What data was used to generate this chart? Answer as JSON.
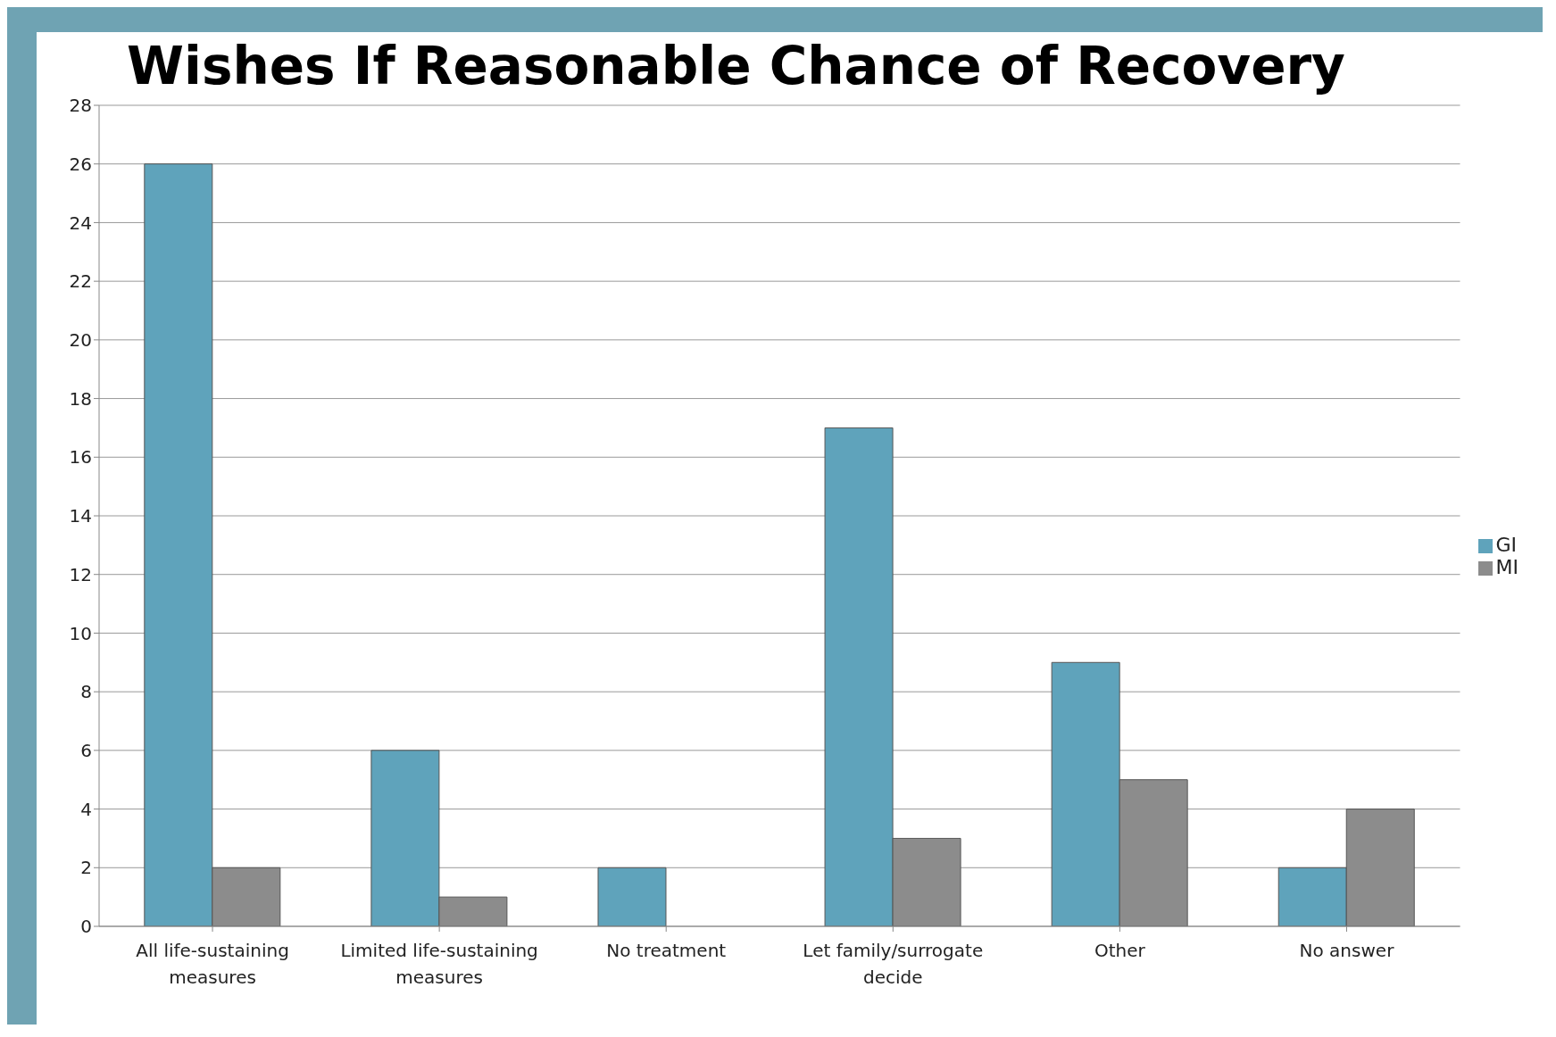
{
  "chart_data": {
    "type": "bar",
    "title": "Wishes If Reasonable Chance of Recovery",
    "categories": [
      "All life-sustaining measures",
      "Limited life-sustaining measures",
      "No treatment",
      "Let family/surrogate decide",
      "Other",
      "No answer"
    ],
    "series": [
      {
        "name": "GI",
        "color": "#5fa3bb",
        "values": [
          26,
          6,
          2,
          17,
          9,
          2
        ]
      },
      {
        "name": "MI",
        "color": "#8c8c8c",
        "values": [
          2,
          1,
          0,
          3,
          5,
          4
        ]
      }
    ],
    "ylim": [
      0,
      28
    ],
    "yticks": [
      0,
      2,
      4,
      6,
      8,
      10,
      12,
      14,
      16,
      18,
      20,
      22,
      24,
      26,
      28
    ],
    "grid": "y",
    "legend": "right"
  }
}
